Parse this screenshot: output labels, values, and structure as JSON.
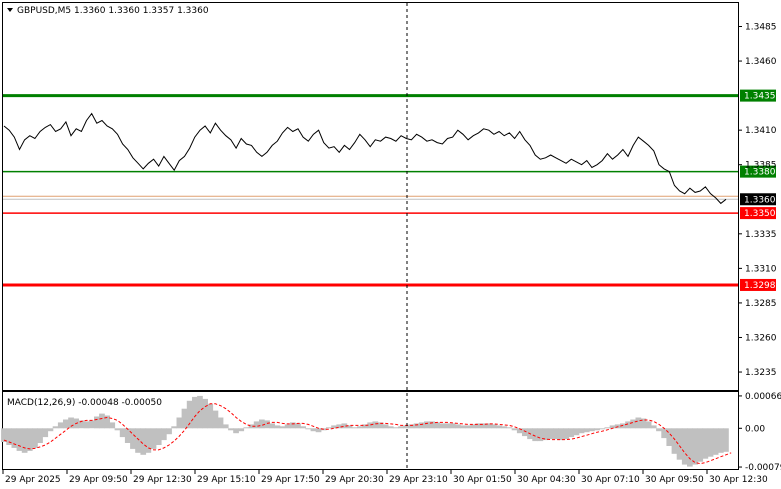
{
  "header": {
    "symbol_line": "GBPUSD,M5  1.3360 1.3360 1.3357 1.3360",
    "macd_line": "MACD(12,26,9) -0.00048 -0.00050"
  },
  "chart_data": [
    {
      "type": "line",
      "title": "GBPUSD,M5  1.3360 1.3360 1.3357 1.3360",
      "symbol": "GBPUSD",
      "timeframe": "M5",
      "ylim": [
        1.3222,
        1.3502
      ],
      "y_ticks": [
        "1.3485",
        "1.3460",
        "1.3410",
        "1.3385",
        "1.3335",
        "1.3310",
        "1.3285",
        "1.3260",
        "1.3235"
      ],
      "x_ticks": [
        "29 Apr 2025",
        "29 Apr 09:50",
        "29 Apr 12:30",
        "29 Apr 15:10",
        "29 Apr 17:50",
        "29 Apr 20:30",
        "29 Apr 23:10",
        "30 Apr 01:50",
        "30 Apr 04:30",
        "30 Apr 07:10",
        "30 Apr 09:50",
        "30 Apr 12:30"
      ],
      "grid": false,
      "vertical_marker": "29 Apr 23:10",
      "levels": [
        {
          "label": "1.3435",
          "value": 1.3435,
          "color": "#008000",
          "weight": "thick"
        },
        {
          "label": "1.3380",
          "value": 1.338,
          "color": "#008000",
          "weight": "thin"
        },
        {
          "label": "1.3350",
          "value": 1.335,
          "color": "#ff0000",
          "weight": "thin"
        },
        {
          "label": "1.3298",
          "value": 1.3298,
          "color": "#ff0000",
          "weight": "thick"
        }
      ],
      "current_price": {
        "label": "1.3360",
        "value": 1.336
      },
      "series": [
        {
          "values": [
            1.3413,
            1.341,
            1.3405,
            1.3396,
            1.3403,
            1.3406,
            1.3404,
            1.3409,
            1.3412,
            1.3414,
            1.3409,
            1.3411,
            1.3416,
            1.3406,
            1.3411,
            1.3409,
            1.3417,
            1.3422,
            1.3415,
            1.3417,
            1.3413,
            1.3411,
            1.3407,
            1.34,
            1.3396,
            1.339,
            1.3386,
            1.3382,
            1.3386,
            1.3389,
            1.3384,
            1.3391,
            1.3386,
            1.3381,
            1.3388,
            1.3391,
            1.3397,
            1.3405,
            1.341,
            1.3413,
            1.3408,
            1.3415,
            1.341,
            1.3406,
            1.3403,
            1.3397,
            1.3404,
            1.34,
            1.3399,
            1.3394,
            1.3391,
            1.3394,
            1.3399,
            1.3402,
            1.3408,
            1.3412,
            1.3409,
            1.3411,
            1.3405,
            1.3402,
            1.3407,
            1.341,
            1.3401,
            1.3397,
            1.3398,
            1.3394,
            1.3399,
            1.3396,
            1.3401,
            1.3407,
            1.3403,
            1.3398,
            1.3403,
            1.3402,
            1.3405,
            1.3404,
            1.3402,
            1.3406,
            1.3404,
            1.3403,
            1.3407,
            1.3405,
            1.3402,
            1.3403,
            1.3401,
            1.34,
            1.3404,
            1.3405,
            1.341,
            1.3407,
            1.3403,
            1.3406,
            1.3408,
            1.3411,
            1.341,
            1.3407,
            1.3409,
            1.3406,
            1.3408,
            1.3404,
            1.3409,
            1.3403,
            1.3399,
            1.3392,
            1.3389,
            1.339,
            1.3392,
            1.339,
            1.3388,
            1.3386,
            1.3389,
            1.3387,
            1.3385,
            1.3388,
            1.3383,
            1.3385,
            1.3388,
            1.3393,
            1.3389,
            1.3392,
            1.3396,
            1.3391,
            1.3399,
            1.3405,
            1.3402,
            1.3399,
            1.3395,
            1.3385,
            1.3382,
            1.338,
            1.337,
            1.3366,
            1.3364,
            1.3368,
            1.3365,
            1.3366,
            1.3369,
            1.3364,
            1.3361,
            1.3357,
            1.336
          ]
        }
      ]
    },
    {
      "type": "bar",
      "title": "MACD(12,26,9) -0.00048 -0.00050",
      "ylim": [
        -0.00083,
        0.00074
      ],
      "y_ticks": [
        "0.00066",
        "0.00",
        "-0.00079"
      ],
      "series": [
        {
          "name": "MACD",
          "values": [
            -0.00028,
            -0.00034,
            -0.0004,
            -0.00046,
            -0.0005,
            -0.00046,
            -0.0004,
            -0.0003,
            -0.00018,
            -6e-05,
            4e-05,
            0.00012,
            0.00018,
            0.00022,
            0.0002,
            0.00016,
            0.00014,
            0.00016,
            0.00024,
            0.0003,
            0.00026,
            0.00012,
            -4e-05,
            -0.00018,
            -0.0003,
            -0.00042,
            -0.0005,
            -0.00054,
            -0.0005,
            -0.00042,
            -0.00034,
            -0.00024,
            -0.00012,
            4e-05,
            0.00022,
            0.0004,
            0.00056,
            0.00064,
            0.00066,
            0.0006,
            0.0005,
            0.00036,
            0.00022,
            8e-05,
            -4e-05,
            -0.0001,
            -6e-05,
            2e-05,
            8e-05,
            0.00014,
            0.00018,
            0.00016,
            0.0001,
            6e-05,
            4e-05,
            8e-05,
            0.00012,
            0.0001,
            4e-05,
            -2e-05,
            -6e-05,
            -8e-05,
            -4e-05,
            2e-05,
            6e-05,
            8e-05,
            0.0001,
            6e-05,
            2e-05,
            4e-05,
            8e-05,
            0.00012,
            0.00014,
            0.00012,
            8e-05,
            4e-05,
            2e-05,
            4e-05,
            6e-05,
            8e-05,
            0.0001,
            0.00012,
            0.00014,
            0.00014,
            0.00012,
            0.0001,
            0.0001,
            0.0001,
            8e-05,
            6e-05,
            6e-05,
            8e-05,
            0.0001,
            0.0001,
            0.0001,
            8e-05,
            6e-05,
            4e-05,
            2e-05,
            -4e-05,
            -0.0001,
            -0.00016,
            -0.00022,
            -0.00026,
            -0.00026,
            -0.00024,
            -0.00022,
            -0.00022,
            -0.00024,
            -0.00022,
            -0.00018,
            -0.00014,
            -0.0001,
            -8e-05,
            -6e-05,
            -4e-05,
            -2e-05,
            2e-05,
            6e-05,
            8e-05,
            0.0001,
            0.00014,
            0.00018,
            0.00022,
            0.0002,
            0.00014,
            6e-05,
            -6e-05,
            -0.0002,
            -0.00036,
            -0.00052,
            -0.00064,
            -0.00074,
            -0.00078,
            -0.00074,
            -0.00068,
            -0.00062,
            -0.00058,
            -0.00054,
            -0.0005,
            -0.00048
          ]
        },
        {
          "name": "Signal",
          "values": [
            -0.00024,
            -0.00028,
            -0.00032,
            -0.00036,
            -0.0004,
            -0.00042,
            -0.00041,
            -0.00038,
            -0.00034,
            -0.00028,
            -0.0002,
            -0.00012,
            -4e-05,
            4e-05,
            0.0001,
            0.00014,
            0.00016,
            0.00016,
            0.00018,
            0.0002,
            0.00022,
            0.0002,
            0.00016,
            8e-05,
            -2e-05,
            -0.00012,
            -0.00022,
            -0.00032,
            -0.0004,
            -0.00044,
            -0.00044,
            -0.0004,
            -0.00034,
            -0.00026,
            -0.00016,
            -4e-05,
            0.0001,
            0.00024,
            0.00036,
            0.00044,
            0.0005,
            0.0005,
            0.00046,
            0.0004,
            0.00032,
            0.00022,
            0.00014,
            8e-05,
            4e-05,
            4e-05,
            6e-05,
            0.0001,
            0.00012,
            0.00012,
            0.0001,
            9e-05,
            9e-05,
            0.0001,
            0.0001,
            8e-05,
            4e-05,
            0.0,
            -2e-05,
            -2e-05,
            0.0,
            2e-05,
            4e-05,
            6e-05,
            6e-05,
            6e-05,
            6e-05,
            7e-05,
            9e-05,
            0.0001,
            0.0001,
            9e-05,
            8e-05,
            6e-05,
            6e-05,
            6e-05,
            7e-05,
            8e-05,
            0.0001,
            0.00011,
            0.00012,
            0.00012,
            0.00012,
            0.00011,
            0.0001,
            9e-05,
            8e-05,
            8e-05,
            8e-05,
            8e-05,
            9e-05,
            9e-05,
            8e-05,
            7e-05,
            6e-05,
            3e-05,
            -1e-05,
            -6e-05,
            -0.00011,
            -0.00016,
            -0.0002,
            -0.00022,
            -0.00023,
            -0.00023,
            -0.00023,
            -0.00023,
            -0.00022,
            -0.0002,
            -0.00017,
            -0.00014,
            -0.00011,
            -8e-05,
            -6e-05,
            -3e-05,
            0.0,
            3e-05,
            6e-05,
            9e-05,
            0.00012,
            0.00015,
            0.00017,
            0.00017,
            0.00014,
            8e-05,
            0.0,
            -0.0001,
            -0.00022,
            -0.00036,
            -0.0005,
            -0.00062,
            -0.0007,
            -0.00072,
            -0.0007,
            -0.00066,
            -0.00062,
            -0.00058,
            -0.00054,
            -0.0005
          ]
        }
      ]
    }
  ]
}
